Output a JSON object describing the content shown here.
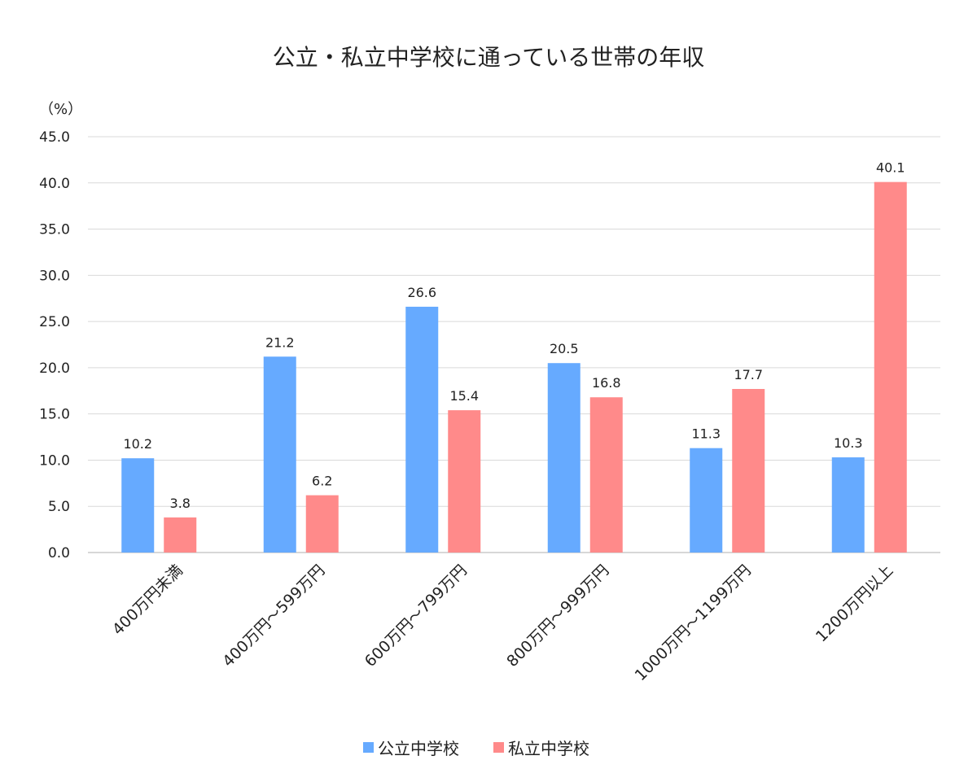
{
  "colors": {
    "public": "#66aaff",
    "private": "#ff8a8a"
  },
  "chart_data": {
    "type": "bar",
    "title": "公立・私立中学校に通っている世帯の年収",
    "ylabel": "（%）",
    "ylim": [
      0,
      45
    ],
    "yticks": [
      "0.0",
      "5.0",
      "10.0",
      "15.0",
      "20.0",
      "25.0",
      "30.0",
      "35.0",
      "40.0",
      "45.0"
    ],
    "categories": [
      "400万円未満",
      "400万円～599万円",
      "600万円～799万円",
      "800万円～999万円",
      "1000万円～1199万円",
      "1200万円以上"
    ],
    "series": [
      {
        "name": "公立中学校",
        "values": [
          10.2,
          21.2,
          26.6,
          20.5,
          11.3,
          10.3
        ],
        "labels": [
          "10.2",
          "21.2",
          "26.6",
          "20.5",
          "11.3",
          "10.3"
        ]
      },
      {
        "name": "私立中学校",
        "values": [
          3.8,
          6.2,
          15.4,
          16.8,
          17.7,
          40.1
        ],
        "labels": [
          "3.8",
          "6.2",
          "15.4",
          "16.8",
          "17.7",
          "40.1"
        ]
      }
    ],
    "grid": true,
    "legend": "bottom"
  }
}
